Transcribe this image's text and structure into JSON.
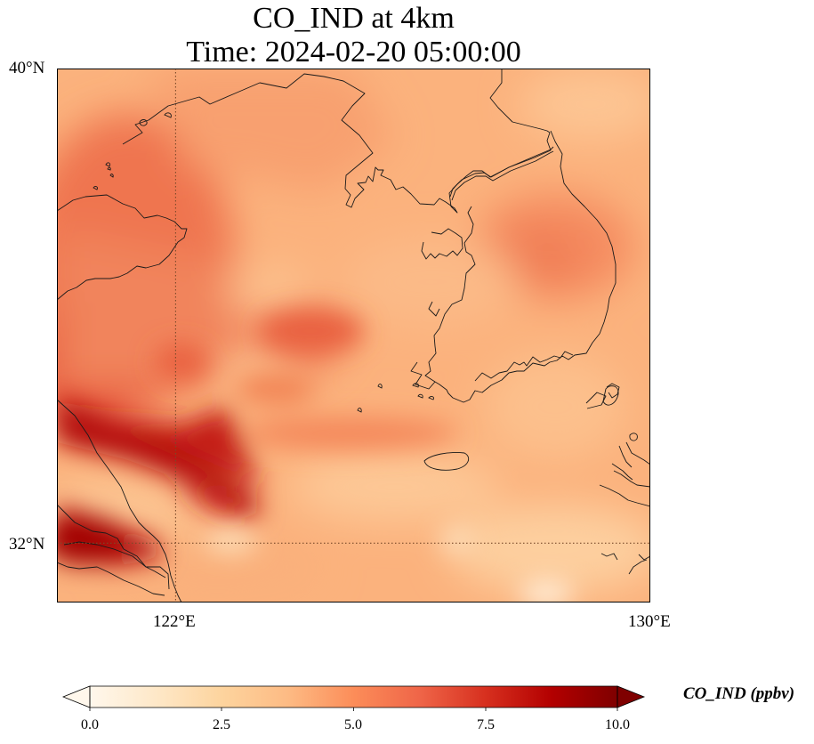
{
  "title": {
    "line1": "CO_IND at 4km",
    "line2": "Time: 2024-02-20 05:00:00"
  },
  "map": {
    "projection": "PlateCarree",
    "extent": {
      "lon_min": 120.4,
      "lon_max": 130.0,
      "lat_min": 31.0,
      "lat_max": 40.0
    },
    "gridlines": {
      "style": "dotted",
      "color": "#7a4a2a",
      "lons": [
        122
      ],
      "lats": [
        32
      ]
    },
    "coastline_color": "#000000",
    "lon_tick_labels": [
      "122°E",
      "130°E"
    ],
    "lat_tick_labels": [
      "40°N",
      "32°N"
    ],
    "field_description": "CO_IND concentration field, high values (dark red) in the southwest plume, lower values (pale orange) east and southeast"
  },
  "colorbar": {
    "colormap": "OrRd",
    "stops": [
      "#fff7ec",
      "#fee8c8",
      "#fdd49e",
      "#fdbb84",
      "#fc8d59",
      "#ef6548",
      "#d7301f",
      "#b30000",
      "#7f0000"
    ],
    "min": 0.0,
    "max": 10.0,
    "extend": "both",
    "tick_labels": [
      "0.0",
      "2.5",
      "5.0",
      "7.5",
      "10.0"
    ],
    "tick_values": [
      0.0,
      2.5,
      5.0,
      7.5,
      10.0
    ],
    "label": "CO_IND (ppbv)"
  }
}
